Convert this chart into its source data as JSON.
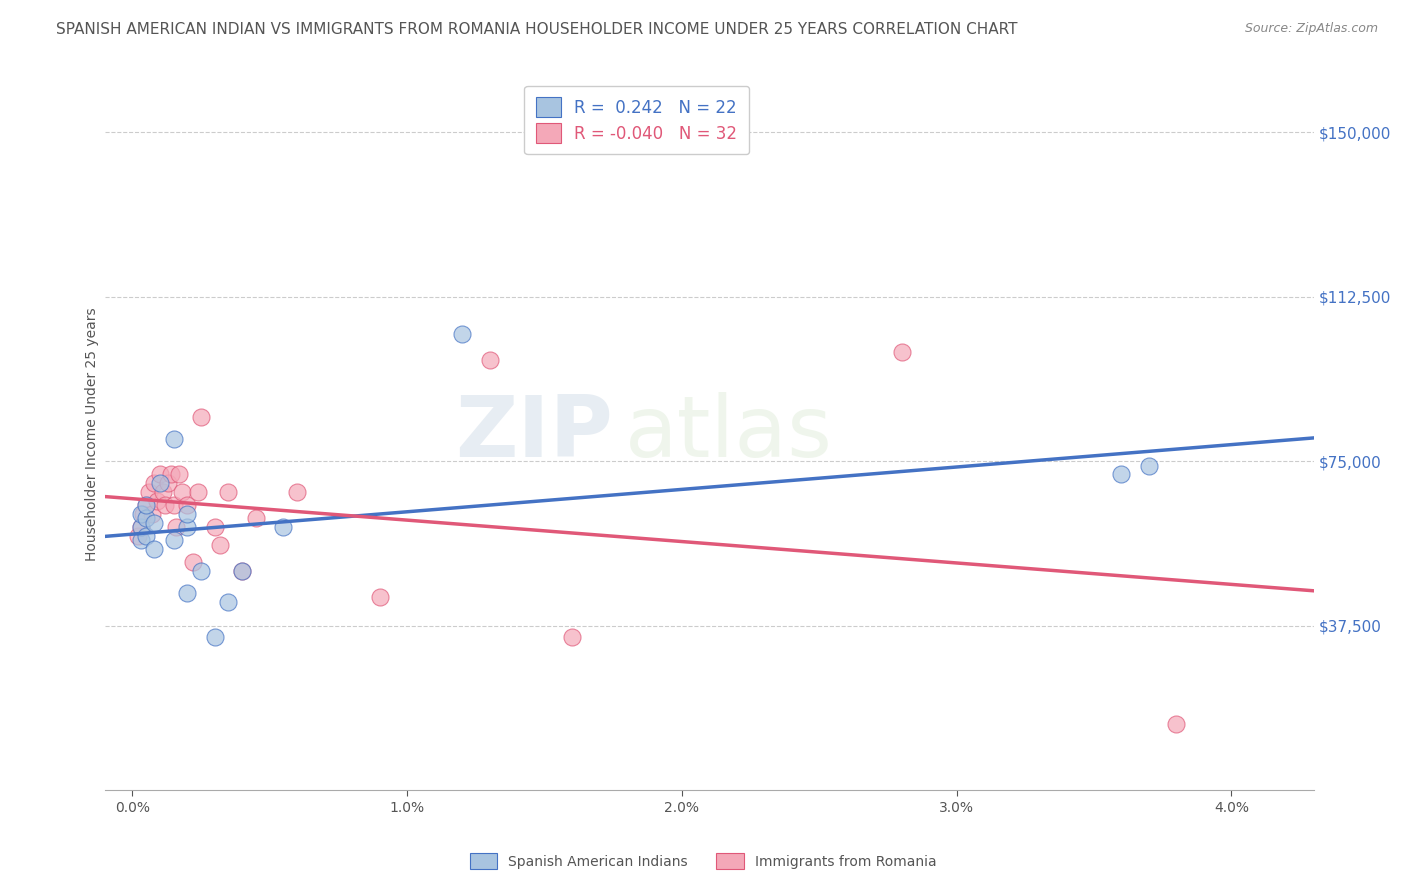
{
  "title": "SPANISH AMERICAN INDIAN VS IMMIGRANTS FROM ROMANIA HOUSEHOLDER INCOME UNDER 25 YEARS CORRELATION CHART",
  "source": "Source: ZipAtlas.com",
  "ylabel": "Householder Income Under 25 years",
  "xlabel_ticks": [
    "0.0%",
    "1.0%",
    "2.0%",
    "3.0%",
    "4.0%"
  ],
  "xlabel_vals": [
    0.0,
    0.01,
    0.02,
    0.03,
    0.04
  ],
  "ytick_labels": [
    "$37,500",
    "$75,000",
    "$112,500",
    "$150,000"
  ],
  "ytick_vals": [
    37500,
    75000,
    112500,
    150000
  ],
  "ylim": [
    0,
    162500
  ],
  "xlim": [
    -0.001,
    0.043
  ],
  "r_blue": 0.242,
  "n_blue": 22,
  "r_pink": -0.04,
  "n_pink": 32,
  "legend_label_blue": "Spanish American Indians",
  "legend_label_pink": "Immigrants from Romania",
  "color_blue": "#a8c4e0",
  "color_pink": "#f4a8b8",
  "line_color_blue": "#4472c4",
  "line_color_pink": "#e05878",
  "watermark_zip": "ZIP",
  "watermark_atlas": "atlas",
  "blue_scatter_x": [
    0.0003,
    0.0003,
    0.0003,
    0.0005,
    0.0005,
    0.0005,
    0.0008,
    0.0008,
    0.001,
    0.0015,
    0.0015,
    0.002,
    0.002,
    0.002,
    0.0025,
    0.003,
    0.0035,
    0.004,
    0.0055,
    0.012,
    0.036,
    0.037
  ],
  "blue_scatter_y": [
    57000,
    60000,
    63000,
    58000,
    62000,
    65000,
    55000,
    61000,
    70000,
    80000,
    57000,
    60000,
    63000,
    45000,
    50000,
    35000,
    43000,
    50000,
    60000,
    104000,
    72000,
    74000
  ],
  "pink_scatter_x": [
    0.0002,
    0.0003,
    0.0004,
    0.0005,
    0.0006,
    0.0007,
    0.0008,
    0.0009,
    0.001,
    0.0011,
    0.0012,
    0.0013,
    0.0014,
    0.0015,
    0.0016,
    0.0017,
    0.0018,
    0.002,
    0.0022,
    0.0024,
    0.0025,
    0.003,
    0.0032,
    0.0035,
    0.004,
    0.0045,
    0.006,
    0.009,
    0.013,
    0.016,
    0.028,
    0.038
  ],
  "pink_scatter_y": [
    58000,
    60000,
    63000,
    65000,
    68000,
    63000,
    70000,
    66000,
    72000,
    68000,
    65000,
    70000,
    72000,
    65000,
    60000,
    72000,
    68000,
    65000,
    52000,
    68000,
    85000,
    60000,
    56000,
    68000,
    50000,
    62000,
    68000,
    44000,
    98000,
    35000,
    100000,
    15000
  ],
  "title_fontsize": 11,
  "axis_label_fontsize": 10,
  "tick_fontsize": 10
}
